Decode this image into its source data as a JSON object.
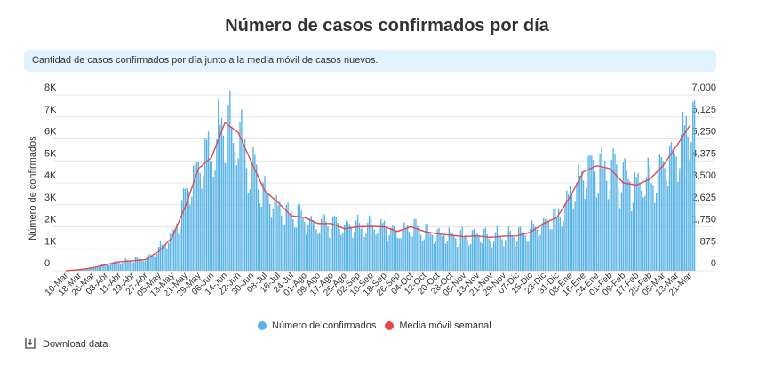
{
  "title": "Número de casos confirmados por día",
  "info": "Cantidad de casos confirmados por día junto a la media móvil de casos nuevos.",
  "download_label": "Download data",
  "colors": {
    "bars": "#5ab4e5",
    "line": "#e04b4f",
    "info_bg": "#e1f3fc"
  },
  "chart_data": {
    "type": "bar",
    "title": "Número de casos confirmados por día",
    "ylabel": "Número de confirmados",
    "ylim_left": [
      0,
      8000
    ],
    "ylim_right": [
      0,
      7000
    ],
    "yticks_left": [
      "0",
      "1K",
      "2K",
      "3K",
      "4K",
      "5K",
      "6K",
      "7K",
      "8K"
    ],
    "yticks_right": [
      "0",
      "875",
      "1,750",
      "2,625",
      "3,500",
      "4,375",
      "5,250",
      "6,125",
      "7,000"
    ],
    "grid": true,
    "legend_position": "bottom",
    "legend": [
      "Número de confirmados",
      "Media móvil semanal"
    ],
    "categories": [
      "10-Mar",
      "18-Mar",
      "26-Mar",
      "03-Abr",
      "11-Abr",
      "19-Abr",
      "27-Abr",
      "05-May",
      "13-May",
      "21-May",
      "29-May",
      "06-Jun",
      "14-Jun",
      "22-Jun",
      "30-Jun",
      "08-Jul",
      "16-Jul",
      "24-Jul",
      "01-Ago",
      "09-Ago",
      "17-Ago",
      "25-Ago",
      "02-Sep",
      "10-Sep",
      "18-Sep",
      "26-Sep",
      "04-Oct",
      "12-Oct",
      "20-Oct",
      "28-Oct",
      "05-Nov",
      "13-Nov",
      "21-Nov",
      "29-Nov",
      "07-Dic",
      "15-Dic",
      "23-Dic",
      "31-Dic",
      "08-Ene",
      "16-Ene",
      "24-Ene",
      "01-Feb",
      "09-Feb",
      "17-Feb",
      "25-Feb",
      "05-Mar",
      "13-Mar",
      "21-Mar"
    ],
    "series": [
      {
        "name": "Número de confirmados",
        "axis": "left",
        "values": [
          0,
          60,
          150,
          280,
          420,
          480,
          540,
          950,
          1600,
          3100,
          4900,
          5400,
          6500,
          6000,
          4800,
          3600,
          3000,
          2500,
          2400,
          2150,
          2150,
          1900,
          2000,
          2000,
          2000,
          1750,
          2000,
          1780,
          1680,
          1620,
          1550,
          1590,
          1520,
          1580,
          1590,
          1750,
          2150,
          2420,
          3370,
          4500,
          4780,
          4650,
          4000,
          3900,
          4170,
          4780,
          5660,
          6600
        ]
      },
      {
        "name": "Media móvil semanal",
        "axis": "right",
        "values": [
          0,
          44,
          114,
          236,
          350,
          394,
          438,
          770,
          1313,
          2538,
          4069,
          4524,
          5900,
          5500,
          4314,
          3185,
          2713,
          2188,
          2118,
          1881,
          1881,
          1671,
          1750,
          1768,
          1750,
          1566,
          1750,
          1566,
          1470,
          1418,
          1356,
          1391,
          1330,
          1383,
          1391,
          1531,
          1881,
          2118,
          2949,
          3938,
          4183,
          4069,
          3500,
          3413,
          3649,
          4183,
          4953,
          5775
        ]
      }
    ]
  }
}
